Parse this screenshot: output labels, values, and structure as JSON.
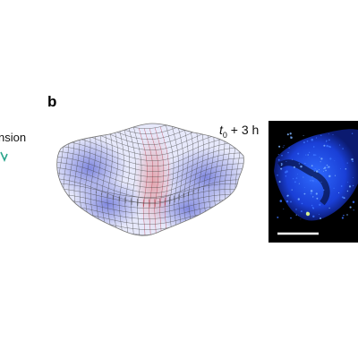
{
  "left_panel": {
    "cut_label": "nsion"
  },
  "panel_b": {
    "letter": "b",
    "time_label_t": "t",
    "time_label_sub": "0",
    "time_label_rest": " + 3 h"
  },
  "colors": {
    "mesh_blue": "#7f86dd",
    "mesh_red": "#d06060",
    "micro_bg": "#000000",
    "micro_signal": "#1e4dff",
    "scale_bar": "#ffffff",
    "cut_mark": "#2ba58c"
  }
}
